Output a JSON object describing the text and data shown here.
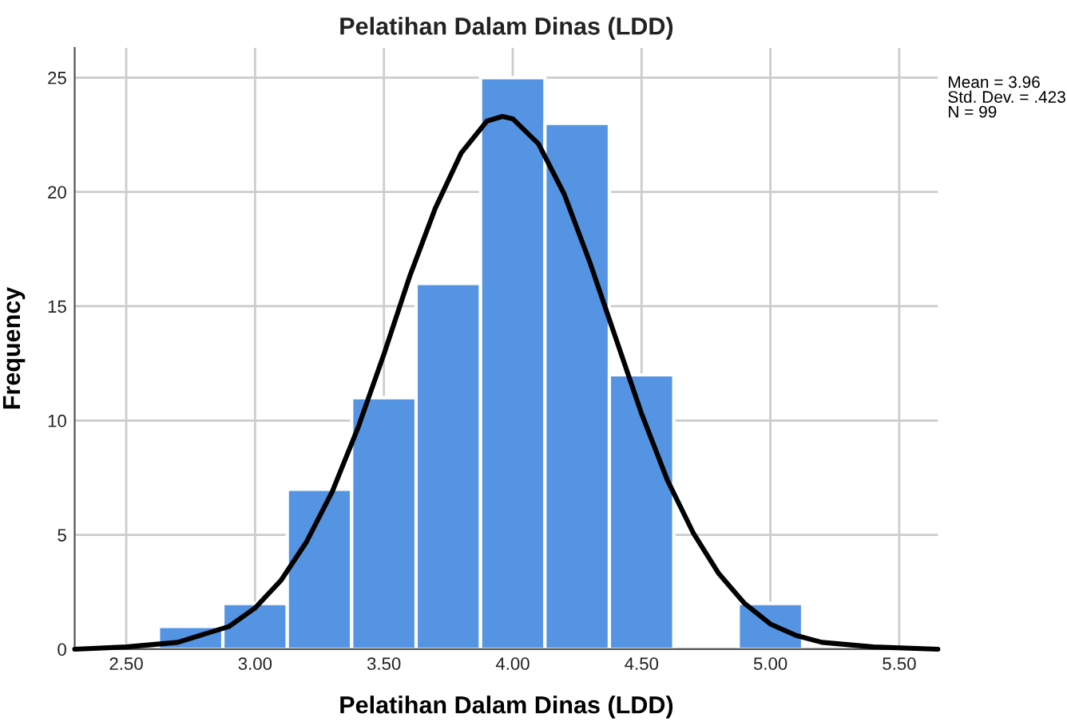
{
  "chart_data": {
    "type": "histogram",
    "title": "Pelatihan Dalam Dinas (LDD)",
    "xlabel": "Pelatihan Dalam Dinas (LDD)",
    "ylabel": "Frequency",
    "series": [
      {
        "color": "#5594e3",
        "bins": [
          2.625,
          2.875,
          3.125,
          3.375,
          3.625,
          3.875,
          4.125,
          4.375,
          4.625,
          4.875,
          5.125
        ],
        "values": [
          1,
          2,
          7,
          11,
          16,
          25,
          23,
          12,
          0,
          2
        ]
      },
      {
        "type": "line",
        "color": "#000000",
        "x": [
          2.3,
          2.5,
          2.7,
          2.9,
          3.0,
          3.1,
          3.2,
          3.3,
          3.4,
          3.5,
          3.6,
          3.7,
          3.8,
          3.9,
          3.96,
          4.0,
          4.1,
          4.2,
          4.3,
          4.4,
          4.5,
          4.6,
          4.7,
          4.8,
          4.9,
          5.0,
          5.1,
          5.2,
          5.4,
          5.65
        ],
        "values": [
          0.0,
          0.1,
          0.3,
          1.0,
          1.8,
          3.0,
          4.7,
          6.9,
          9.7,
          12.9,
          16.3,
          19.3,
          21.7,
          23.1,
          23.3,
          23.2,
          22.1,
          19.9,
          16.9,
          13.6,
          10.3,
          7.4,
          5.1,
          3.3,
          2.0,
          1.1,
          0.6,
          0.3,
          0.1,
          0.0
        ]
      }
    ],
    "xlim": [
      2.3,
      5.65
    ],
    "ylim": [
      0,
      26.3
    ],
    "xticks": [
      {
        "value": 2.5,
        "label": "2.50"
      },
      {
        "value": 3.0,
        "label": "3.00"
      },
      {
        "value": 3.5,
        "label": "3.50"
      },
      {
        "value": 4.0,
        "label": "4.00"
      },
      {
        "value": 4.5,
        "label": "4.50"
      },
      {
        "value": 5.0,
        "label": "5.00"
      },
      {
        "value": 5.5,
        "label": "5.50"
      }
    ],
    "yticks": [
      0,
      5,
      10,
      15,
      20,
      25
    ],
    "grid": true,
    "annotations": [
      "Mean = 3.96\nStd. Dev. = .423\nN = 99"
    ]
  }
}
